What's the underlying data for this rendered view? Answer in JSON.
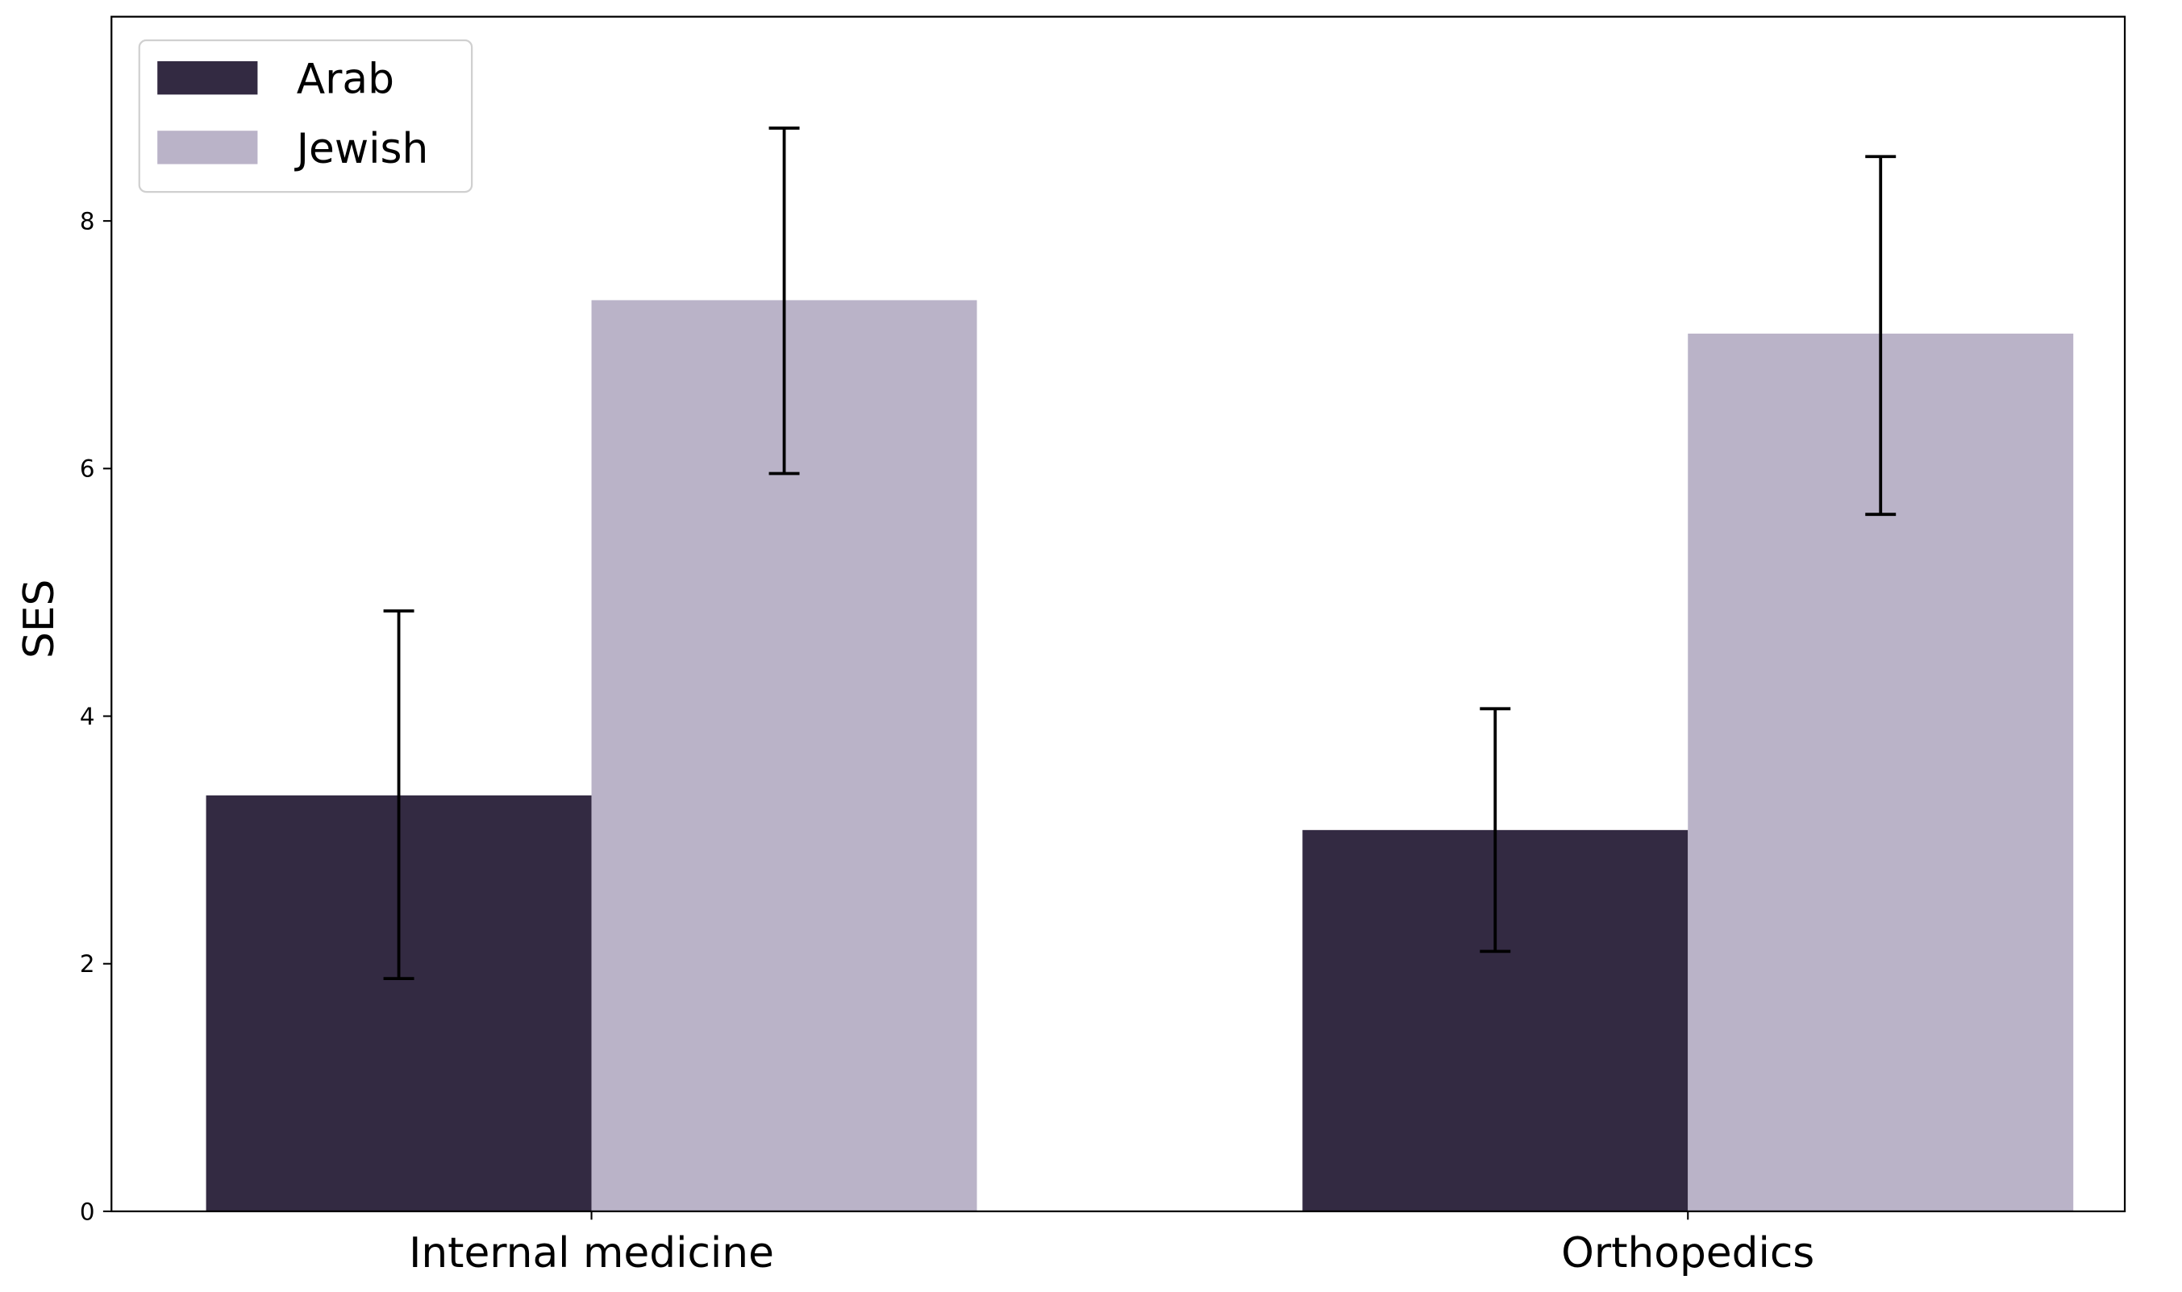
{
  "chart_data": {
    "type": "bar",
    "title": "",
    "xlabel": "",
    "ylabel": "SES",
    "categories": [
      "Internal medicine",
      "Orthopedics"
    ],
    "series": [
      {
        "name": "Arab",
        "color": "#332a42",
        "values": [
          3.36,
          3.08
        ],
        "error_low": [
          1.88,
          2.1
        ],
        "error_high": [
          4.85,
          4.06
        ]
      },
      {
        "name": "Jewish",
        "color": "#bab3c8",
        "values": [
          7.36,
          7.09
        ],
        "error_low": [
          5.96,
          5.63
        ],
        "error_high": [
          8.75,
          8.52
        ]
      }
    ],
    "ylim": [
      0,
      9.65
    ],
    "yticks": [
      "0",
      "2",
      "4",
      "6",
      "8"
    ],
    "grid": false,
    "legend_position": "top-left"
  }
}
